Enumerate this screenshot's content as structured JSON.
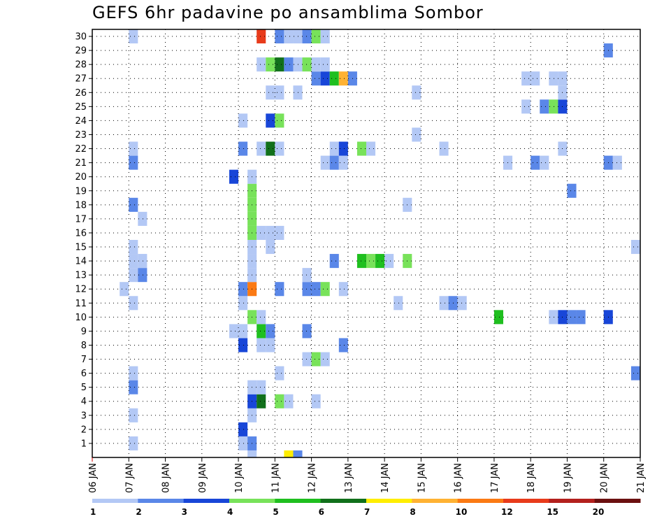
{
  "chart_data": {
    "type": "heatmap",
    "title": "GEFS 6hr padavine po ansamblima Sombor",
    "xlabel": "",
    "ylabel": "",
    "x_ticks": [
      "06 JAN",
      "07 JAN",
      "08 JAN",
      "09 JAN",
      "10 JAN",
      "11 JAN",
      "12 JAN",
      "13 JAN",
      "14 JAN",
      "15 JAN",
      "16 JAN",
      "17 JAN",
      "18 JAN",
      "19 JAN",
      "20 JAN",
      "21 JAN"
    ],
    "y_ticks": [
      "1",
      "2",
      "3",
      "4",
      "5",
      "6",
      "7",
      "8",
      "9",
      "10",
      "11",
      "12",
      "13",
      "14",
      "15",
      "16",
      "17",
      "18",
      "19",
      "20",
      "21",
      "22",
      "23",
      "24",
      "25",
      "26",
      "27",
      "28",
      "29",
      "30"
    ],
    "xlim_days": [
      0,
      15
    ],
    "ylim": [
      0,
      30
    ],
    "time_step_hours": 6,
    "grid": true,
    "colorbar": {
      "labels": [
        "1",
        "2",
        "3",
        "4",
        "5",
        "6",
        "7",
        "8",
        "10",
        "12",
        "15",
        "20"
      ],
      "colors": [
        "#b3c8f5",
        "#5a87e8",
        "#1846d8",
        "#78e25a",
        "#1fbf1f",
        "#11701b",
        "#ffee00",
        "#ffb233",
        "#fb7a14",
        "#e83b1b",
        "#b3201d",
        "#6b1010"
      ]
    },
    "cells": [
      {
        "m": 0,
        "t": 4,
        "v": 1
      },
      {
        "m": 0,
        "t": 16,
        "v": 1
      },
      {
        "m": 0,
        "t": 17,
        "v": 2
      },
      {
        "m": 1,
        "t": 16,
        "v": 3
      },
      {
        "m": 2,
        "t": 4,
        "v": 1
      },
      {
        "m": 2,
        "t": 17,
        "v": 1
      },
      {
        "m": 3,
        "t": 17,
        "v": 3
      },
      {
        "m": 3,
        "t": 18,
        "v": 6
      },
      {
        "m": 3,
        "t": 20,
        "v": 4
      },
      {
        "m": 3,
        "t": 21,
        "v": 1
      },
      {
        "m": 3,
        "t": 24,
        "v": 1
      },
      {
        "m": 4,
        "t": 4,
        "v": 2
      },
      {
        "m": 4,
        "t": 17,
        "v": 1
      },
      {
        "m": 4,
        "t": 18,
        "v": 1
      },
      {
        "m": 5,
        "t": 4,
        "v": 1
      },
      {
        "m": 5,
        "t": 20,
        "v": 1
      },
      {
        "m": 5,
        "t": 59,
        "v": 2
      },
      {
        "m": 6,
        "t": 23,
        "v": 1
      },
      {
        "m": 6,
        "t": 24,
        "v": 4
      },
      {
        "m": 6,
        "t": 25,
        "v": 1
      },
      {
        "m": 7,
        "t": 16,
        "v": 3
      },
      {
        "m": 7,
        "t": 18,
        "v": 1
      },
      {
        "m": 7,
        "t": 19,
        "v": 1
      },
      {
        "m": 7,
        "t": 27,
        "v": 2
      },
      {
        "m": 8,
        "t": 15,
        "v": 1
      },
      {
        "m": 8,
        "t": 16,
        "v": 1
      },
      {
        "m": 8,
        "t": 18,
        "v": 5
      },
      {
        "m": 8,
        "t": 19,
        "v": 2
      },
      {
        "m": 8,
        "t": 23,
        "v": 2
      },
      {
        "m": 9,
        "t": 17,
        "v": 4
      },
      {
        "m": 9,
        "t": 18,
        "v": 1
      },
      {
        "m": 9,
        "t": 44,
        "v": 5
      },
      {
        "m": 9,
        "t": 50,
        "v": 1
      },
      {
        "m": 9,
        "t": 51,
        "v": 3
      },
      {
        "m": 9,
        "t": 52,
        "v": 2
      },
      {
        "m": 9,
        "t": 53,
        "v": 2
      },
      {
        "m": 9,
        "t": 56,
        "v": 3
      },
      {
        "m": 10,
        "t": 4,
        "v": 1
      },
      {
        "m": 10,
        "t": 16,
        "v": 1
      },
      {
        "m": 10,
        "t": 33,
        "v": 1
      },
      {
        "m": 10,
        "t": 38,
        "v": 1
      },
      {
        "m": 10,
        "t": 39,
        "v": 2
      },
      {
        "m": 10,
        "t": 40,
        "v": 1
      },
      {
        "m": 11,
        "t": 3,
        "v": 1
      },
      {
        "m": 11,
        "t": 16,
        "v": 2
      },
      {
        "m": 11,
        "t": 17,
        "v": 10
      },
      {
        "m": 11,
        "t": 20,
        "v": 2
      },
      {
        "m": 11,
        "t": 23,
        "v": 2
      },
      {
        "m": 11,
        "t": 24,
        "v": 2
      },
      {
        "m": 11,
        "t": 25,
        "v": 4
      },
      {
        "m": 11,
        "t": 27,
        "v": 1
      },
      {
        "m": 12,
        "t": 4,
        "v": 1
      },
      {
        "m": 12,
        "t": 5,
        "v": 2
      },
      {
        "m": 12,
        "t": 17,
        "v": 1
      },
      {
        "m": 12,
        "t": 23,
        "v": 1
      },
      {
        "m": 13,
        "t": 4,
        "v": 1
      },
      {
        "m": 13,
        "t": 5,
        "v": 1
      },
      {
        "m": 13,
        "t": 17,
        "v": 1
      },
      {
        "m": 13,
        "t": 26,
        "v": 2
      },
      {
        "m": 13,
        "t": 29,
        "v": 5
      },
      {
        "m": 13,
        "t": 30,
        "v": 4
      },
      {
        "m": 13,
        "t": 31,
        "v": 5
      },
      {
        "m": 13,
        "t": 32,
        "v": 1
      },
      {
        "m": 13,
        "t": 34,
        "v": 4
      },
      {
        "m": 14,
        "t": 4,
        "v": 1
      },
      {
        "m": 14,
        "t": 17,
        "v": 1
      },
      {
        "m": 14,
        "t": 19,
        "v": 1
      },
      {
        "m": 14,
        "t": 59,
        "v": 1
      },
      {
        "m": 15,
        "t": 17,
        "v": 4
      },
      {
        "m": 15,
        "t": 18,
        "v": 1
      },
      {
        "m": 15,
        "t": 19,
        "v": 1
      },
      {
        "m": 15,
        "t": 20,
        "v": 1
      },
      {
        "m": 16,
        "t": 5,
        "v": 1
      },
      {
        "m": 16,
        "t": 17,
        "v": 4
      },
      {
        "m": 17,
        "t": 4,
        "v": 2
      },
      {
        "m": 17,
        "t": 17,
        "v": 4
      },
      {
        "m": 17,
        "t": 34,
        "v": 1
      },
      {
        "m": 18,
        "t": 17,
        "v": 4
      },
      {
        "m": 18,
        "t": 52,
        "v": 2
      },
      {
        "m": 19,
        "t": 15,
        "v": 3
      },
      {
        "m": 19,
        "t": 17,
        "v": 1
      },
      {
        "m": 20,
        "t": 4,
        "v": 2
      },
      {
        "m": 20,
        "t": 25,
        "v": 1
      },
      {
        "m": 20,
        "t": 26,
        "v": 2
      },
      {
        "m": 20,
        "t": 27,
        "v": 1
      },
      {
        "m": 20,
        "t": 45,
        "v": 1
      },
      {
        "m": 20,
        "t": 48,
        "v": 2
      },
      {
        "m": 20,
        "t": 49,
        "v": 1
      },
      {
        "m": 20,
        "t": 56,
        "v": 2
      },
      {
        "m": 20,
        "t": 57,
        "v": 1
      },
      {
        "m": 21,
        "t": 4,
        "v": 1
      },
      {
        "m": 21,
        "t": 16,
        "v": 2
      },
      {
        "m": 21,
        "t": 18,
        "v": 1
      },
      {
        "m": 21,
        "t": 19,
        "v": 6
      },
      {
        "m": 21,
        "t": 20,
        "v": 1
      },
      {
        "m": 21,
        "t": 26,
        "v": 1
      },
      {
        "m": 21,
        "t": 27,
        "v": 3
      },
      {
        "m": 21,
        "t": 29,
        "v": 4
      },
      {
        "m": 21,
        "t": 30,
        "v": 1
      },
      {
        "m": 21,
        "t": 38,
        "v": 1
      },
      {
        "m": 21,
        "t": 51,
        "v": 1
      },
      {
        "m": 22,
        "t": 35,
        "v": 1
      },
      {
        "m": 23,
        "t": 16,
        "v": 1
      },
      {
        "m": 23,
        "t": 19,
        "v": 3
      },
      {
        "m": 23,
        "t": 20,
        "v": 4
      },
      {
        "m": 24,
        "t": 47,
        "v": 1
      },
      {
        "m": 24,
        "t": 49,
        "v": 2
      },
      {
        "m": 24,
        "t": 50,
        "v": 4
      },
      {
        "m": 24,
        "t": 51,
        "v": 3
      },
      {
        "m": 25,
        "t": 19,
        "v": 1
      },
      {
        "m": 25,
        "t": 20,
        "v": 1
      },
      {
        "m": 25,
        "t": 22,
        "v": 1
      },
      {
        "m": 25,
        "t": 35,
        "v": 1
      },
      {
        "m": 25,
        "t": 51,
        "v": 1
      },
      {
        "m": 26,
        "t": 24,
        "v": 2
      },
      {
        "m": 26,
        "t": 25,
        "v": 3
      },
      {
        "m": 26,
        "t": 26,
        "v": 5
      },
      {
        "m": 26,
        "t": 27,
        "v": 8
      },
      {
        "m": 26,
        "t": 28,
        "v": 2
      },
      {
        "m": 26,
        "t": 47,
        "v": 1
      },
      {
        "m": 26,
        "t": 48,
        "v": 1
      },
      {
        "m": 26,
        "t": 50,
        "v": 1
      },
      {
        "m": 26,
        "t": 51,
        "v": 1
      },
      {
        "m": 27,
        "t": 18,
        "v": 1
      },
      {
        "m": 27,
        "t": 19,
        "v": 4
      },
      {
        "m": 27,
        "t": 20,
        "v": 6
      },
      {
        "m": 27,
        "t": 21,
        "v": 2
      },
      {
        "m": 27,
        "t": 22,
        "v": 1
      },
      {
        "m": 27,
        "t": 23,
        "v": 4
      },
      {
        "m": 27,
        "t": 24,
        "v": 1
      },
      {
        "m": 27,
        "t": 25,
        "v": 1
      },
      {
        "m": 28,
        "t": 56,
        "v": 2
      },
      {
        "m": 29,
        "t": 4,
        "v": 1
      },
      {
        "m": 29,
        "t": 18,
        "v": 12
      },
      {
        "m": 29,
        "t": 20,
        "v": 2
      },
      {
        "m": 29,
        "t": 21,
        "v": 1
      },
      {
        "m": 29,
        "t": 22,
        "v": 1
      },
      {
        "m": 29,
        "t": 23,
        "v": 2
      },
      {
        "m": 29,
        "t": 24,
        "v": 4
      },
      {
        "m": 29,
        "t": 25,
        "v": 1
      },
      {
        "m": -1,
        "t": 17,
        "v": 1
      },
      {
        "m": -1,
        "t": 21,
        "v": 7
      },
      {
        "m": -1,
        "t": 22,
        "v": 2
      }
    ]
  }
}
